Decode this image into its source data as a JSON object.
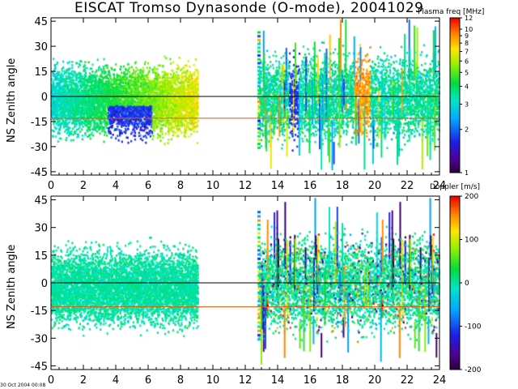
{
  "title": "EISCAT Tromso Dynasonde (O-mode),  20041029",
  "timestamp": "30 Oct 2004 00:08",
  "chart_data": [
    {
      "type": "heatmap",
      "ylabel": "NS Zenith angle",
      "xlabel": "",
      "xlim": [
        0,
        24
      ],
      "ylim": [
        -47,
        47
      ],
      "x_ticks": [
        0,
        2,
        4,
        6,
        8,
        10,
        12,
        14,
        16,
        18,
        20,
        22,
        24
      ],
      "y_ticks": [
        45,
        30,
        15,
        0,
        -15,
        -30,
        -45
      ],
      "colorbar": {
        "title": "Plasma freq [MHz]",
        "scale": "log",
        "range": [
          1,
          12
        ],
        "ticks": [
          "12",
          "10",
          "9",
          "8",
          "7",
          "6",
          "5",
          "4",
          "3",
          "2",
          "1"
        ]
      },
      "reference_lines": [
        {
          "y": 0,
          "color": "#000000"
        },
        {
          "y": -13,
          "color": "#e05a00"
        }
      ]
    },
    {
      "type": "heatmap",
      "ylabel": "NS Zenith angle",
      "xlabel": "",
      "xlim": [
        0,
        24
      ],
      "ylim": [
        -47,
        47
      ],
      "x_ticks": [
        0,
        2,
        4,
        6,
        8,
        10,
        12,
        14,
        16,
        18,
        20,
        22,
        24
      ],
      "y_ticks": [
        45,
        30,
        15,
        0,
        -15,
        -30,
        -45
      ],
      "colorbar": {
        "title": "Doppler [m/s]",
        "scale": "linear",
        "range": [
          -200,
          200
        ],
        "ticks": [
          "200",
          "100",
          "0",
          "-100",
          "-200"
        ]
      },
      "reference_lines": [
        {
          "y": 0,
          "color": "#000000"
        },
        {
          "y": -13,
          "color": "#e05a00"
        }
      ]
    }
  ],
  "colors": {
    "background": "#ffffff",
    "zero_line": "#000000",
    "offset_line": "#e05a00"
  }
}
